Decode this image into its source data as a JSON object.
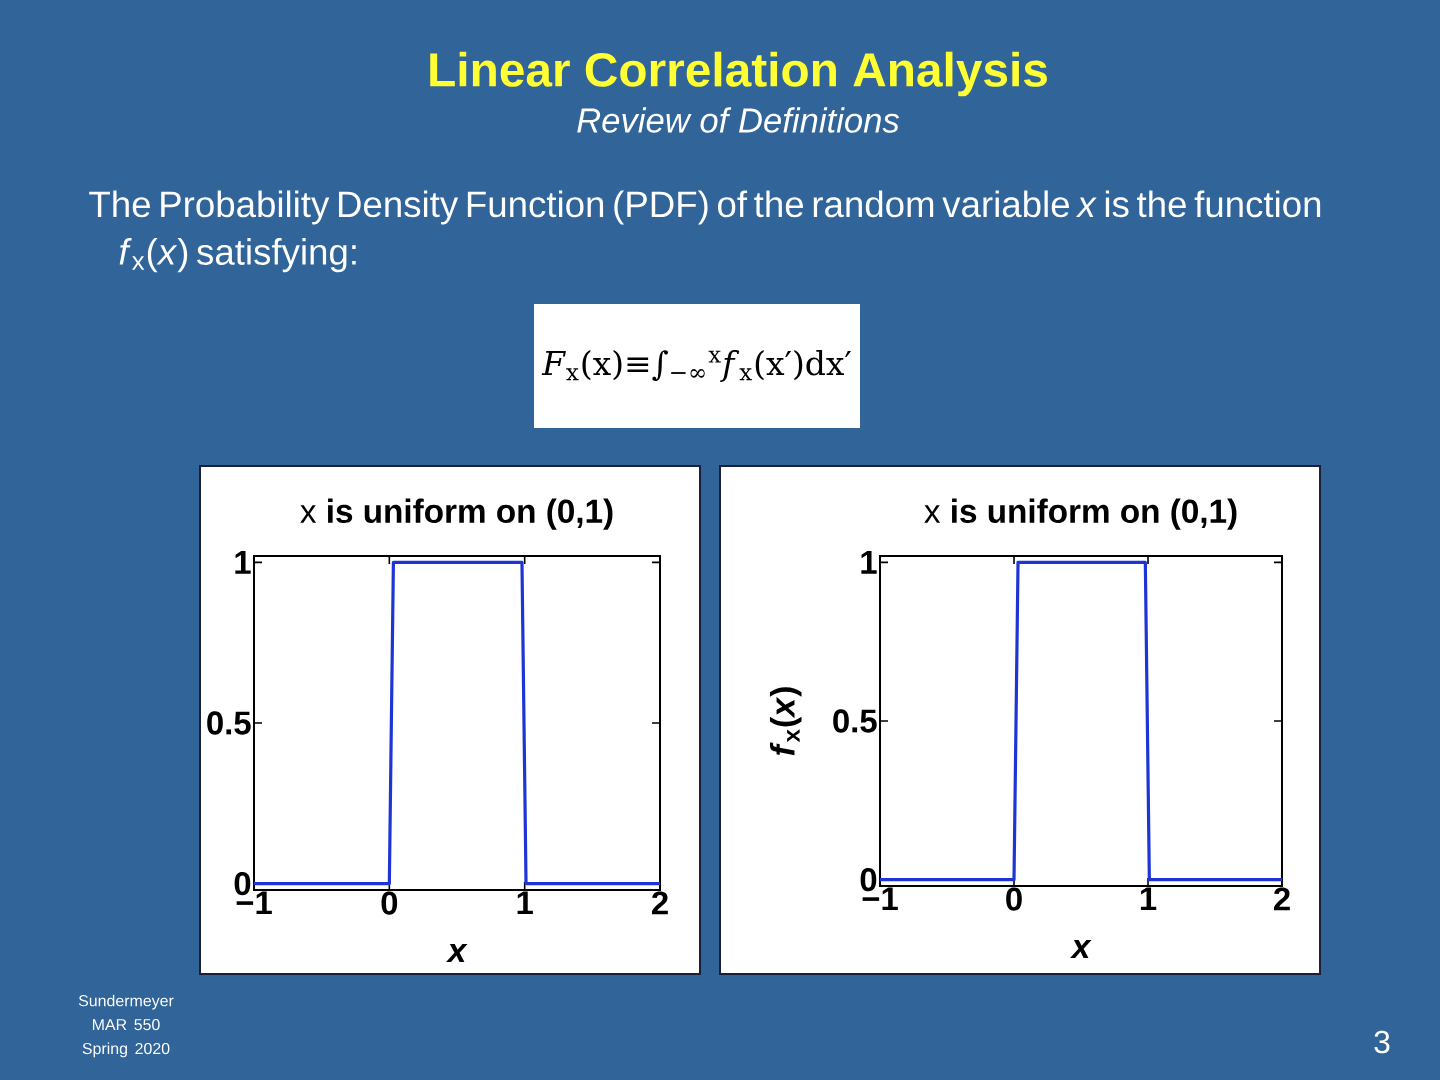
{
  "chart_data": [
    {
      "type": "other",
      "title": "Linear Correlation Analysis",
      "subtitle": "Review of Definitions",
      "annotations": [
        "The Probability Density Function (PDF) of the random variable *x* is the function *f*$_{x}$(*x*) satisfying:",
        "*F*$_{x}$(x)≡∫$_{−∞}$$^{x}$*f*$_{x}$(x′)dx′",
        "Sundermeyer MAR 550 Spring 2020",
        "3"
      ]
    },
    {
      "type": "line",
      "title": "x **is uniform on (0,1)**",
      "xlabel": "x",
      "x": [
        -1,
        0,
        0.03,
        0.98,
        1.01,
        2
      ],
      "series": [
        {
          "color": "#1e35d6",
          "values": [
            0,
            0,
            1,
            1,
            0,
            0
          ]
        }
      ],
      "xlim": [
        -1,
        2
      ],
      "ylim": [
        -0.02,
        1.02
      ],
      "xticks": [
        {
          "value": -1,
          "label": "−1"
        },
        0,
        1,
        2
      ],
      "yticks": [
        0,
        0.5,
        1
      ]
    },
    {
      "type": "line",
      "title": "x **is uniform on (0,1)**",
      "xlabel": "x",
      "ylabel": "*f*$_{x}$(*x*)",
      "x": [
        -1,
        0,
        0.03,
        0.98,
        1.01,
        2
      ],
      "series": [
        {
          "color": "#1e35d6",
          "values": [
            0,
            0,
            1,
            1,
            0,
            0
          ]
        }
      ],
      "xlim": [
        -1,
        2
      ],
      "ylim": [
        -0.02,
        1.02
      ],
      "xticks": [
        {
          "value": -1,
          "label": "−1"
        },
        0,
        1,
        2
      ],
      "yticks": [
        0,
        0.5,
        1
      ]
    }
  ]
}
